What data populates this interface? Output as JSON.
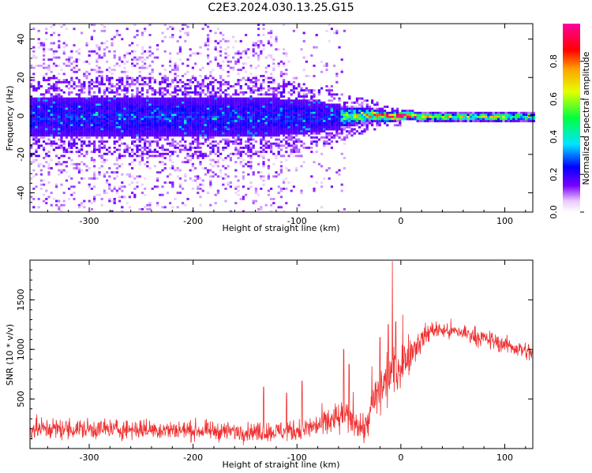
{
  "title": "C2E3.2024.030.13.25.G15",
  "chart_data": [
    {
      "type": "heatmap",
      "xlabel": "Height of straight line (km)",
      "ylabel": "Frequency (Hz)",
      "xlim": [
        -357,
        127
      ],
      "ylim": [
        -50,
        48
      ],
      "xticks": [
        -300,
        -200,
        -100,
        0,
        100
      ],
      "yticks": [
        -40,
        -20,
        0,
        20,
        40
      ],
      "xtick_labels": [
        "-300",
        "-200",
        "-100",
        "0",
        "100"
      ],
      "ytick_labels": [
        "-40",
        "-20",
        "0",
        "20",
        "40"
      ],
      "colorbar": {
        "label": "Normalized spectral amplitude",
        "range": [
          0.0,
          1.0
        ],
        "ticks": [
          0.0,
          0.2,
          0.4,
          0.6,
          0.8
        ],
        "tick_labels": [
          "0.0",
          "0.2",
          "0.4",
          "0.6",
          "0.8"
        ],
        "colormap": "hsv-like (violet→blue→cyan→green→yellow→red→magenta)"
      },
      "ridge": [
        {
          "x": -357,
          "center_hz": 0,
          "halfwidth_hz": 8,
          "amplitude": 0.2
        },
        {
          "x": -150,
          "center_hz": 0,
          "halfwidth_hz": 8,
          "amplitude": 0.25
        },
        {
          "x": -100,
          "center_hz": 0,
          "halfwidth_hz": 7,
          "amplitude": 0.35
        },
        {
          "x": -60,
          "center_hz": 0,
          "halfwidth_hz": 5,
          "amplitude": 0.45
        },
        {
          "x": -30,
          "center_hz": 1,
          "halfwidth_hz": 3,
          "amplitude": 0.65
        },
        {
          "x": -10,
          "center_hz": 0,
          "halfwidth_hz": 2,
          "amplitude": 0.85
        },
        {
          "x": 5,
          "center_hz": 1,
          "halfwidth_hz": 2,
          "amplitude": 0.9
        },
        {
          "x": 20,
          "center_hz": 0,
          "halfwidth_hz": 2,
          "amplitude": 0.55
        },
        {
          "x": 127,
          "center_hz": 0,
          "halfwidth_hz": 2,
          "amplitude": 0.55
        }
      ],
      "grid": false
    },
    {
      "type": "line",
      "xlabel": "Height of straight line (km)",
      "ylabel": "SNR (10 * v/v)",
      "xlim": [
        -357,
        127
      ],
      "ylim": [
        0,
        1900
      ],
      "xticks": [
        -300,
        -200,
        -100,
        0,
        100
      ],
      "yticks": [
        500,
        1000,
        1500
      ],
      "xtick_labels": [
        "-300",
        "-200",
        "-100",
        "0",
        "100"
      ],
      "ytick_labels": [
        "500",
        "1000",
        "1500"
      ],
      "series": [
        {
          "color": "#f03030",
          "envelope": [
            {
              "x": -357,
              "mean": 200,
              "spread": 110
            },
            {
              "x": -250,
              "mean": 195,
              "spread": 100
            },
            {
              "x": -150,
              "mean": 170,
              "spread": 90
            },
            {
              "x": -120,
              "mean": 170,
              "spread": 100
            },
            {
              "x": -100,
              "mean": 185,
              "spread": 110
            },
            {
              "x": -80,
              "mean": 230,
              "spread": 130
            },
            {
              "x": -60,
              "mean": 300,
              "spread": 180
            },
            {
              "x": -45,
              "mean": 310,
              "spread": 200
            },
            {
              "x": -35,
              "mean": 180,
              "spread": 140
            },
            {
              "x": -25,
              "mean": 500,
              "spread": 250
            },
            {
              "x": -10,
              "mean": 750,
              "spread": 300
            },
            {
              "x": 0,
              "mean": 850,
              "spread": 250
            },
            {
              "x": 15,
              "mean": 1050,
              "spread": 150
            },
            {
              "x": 30,
              "mean": 1200,
              "spread": 90
            },
            {
              "x": 60,
              "mean": 1170,
              "spread": 90
            },
            {
              "x": 100,
              "mean": 1050,
              "spread": 90
            },
            {
              "x": 127,
              "mean": 960,
              "spread": 90
            }
          ],
          "spikes": [
            {
              "x": -132,
              "y": 620
            },
            {
              "x": -110,
              "y": 560
            },
            {
              "x": -95,
              "y": 680
            },
            {
              "x": -55,
              "y": 1000
            },
            {
              "x": -50,
              "y": 850
            },
            {
              "x": -28,
              "y": 830
            },
            {
              "x": -20,
              "y": 1120
            },
            {
              "x": -12,
              "y": 1250
            },
            {
              "x": -8,
              "y": 1890
            },
            {
              "x": -5,
              "y": 1280
            },
            {
              "x": 2,
              "y": 1350
            }
          ]
        }
      ],
      "grid": false
    }
  ]
}
